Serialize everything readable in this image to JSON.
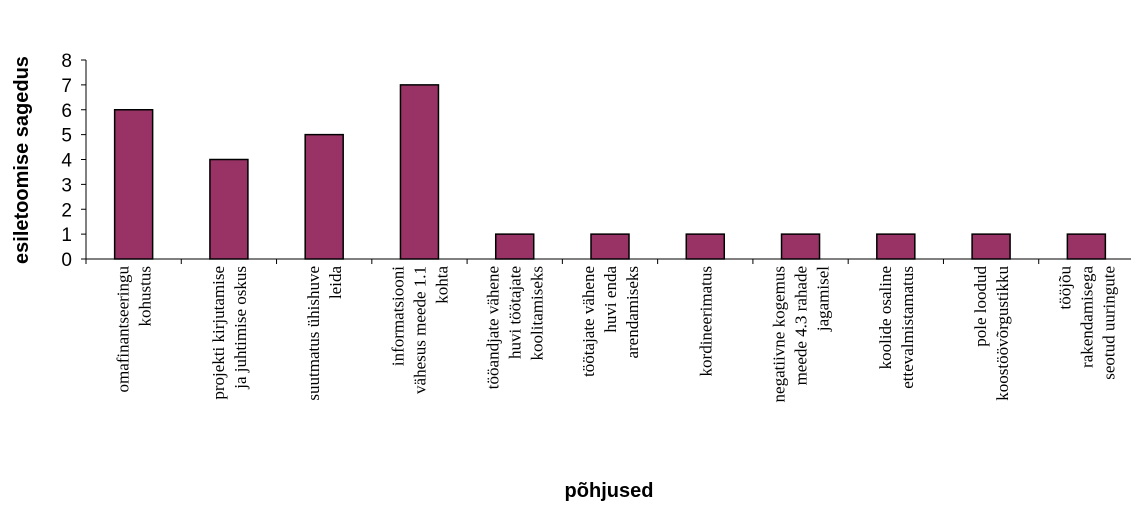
{
  "chart_data": {
    "type": "bar",
    "xlabel": "põhjused",
    "ylabel": "esiletoomise sagedus",
    "ylim": [
      0,
      8
    ],
    "yticks": [
      0,
      1,
      2,
      3,
      4,
      5,
      6,
      7,
      8
    ],
    "grid": false,
    "legend": "none",
    "bar_color": "#993366",
    "categories": [
      [
        "omafinantseeringu",
        "kohustus"
      ],
      [
        "projekti kirjutamise",
        "ja juhtimise oskus"
      ],
      [
        "suutmatus ühishuve",
        "leida"
      ],
      [
        "informatsiooni",
        "vähesus meede 1.1",
        "kohta"
      ],
      [
        "tööandjate vähene",
        "huvi töötajate",
        "koolitamiseks"
      ],
      [
        "töötajate vähene",
        "huvi enda",
        "arendamiseks"
      ],
      [
        "kordineerimatus"
      ],
      [
        "negatiivne kogemus",
        "meede 4.3 rahade",
        "jagamisel"
      ],
      [
        "koolide osaline",
        "ettevalmistamatus"
      ],
      [
        "pole loodud",
        "koostöövõrgustikku"
      ],
      [
        "tööjõu",
        "rakendamisega",
        "seotud uuringute"
      ]
    ],
    "values": [
      6,
      4,
      5,
      7,
      1,
      1,
      1,
      1,
      1,
      1,
      1
    ]
  }
}
